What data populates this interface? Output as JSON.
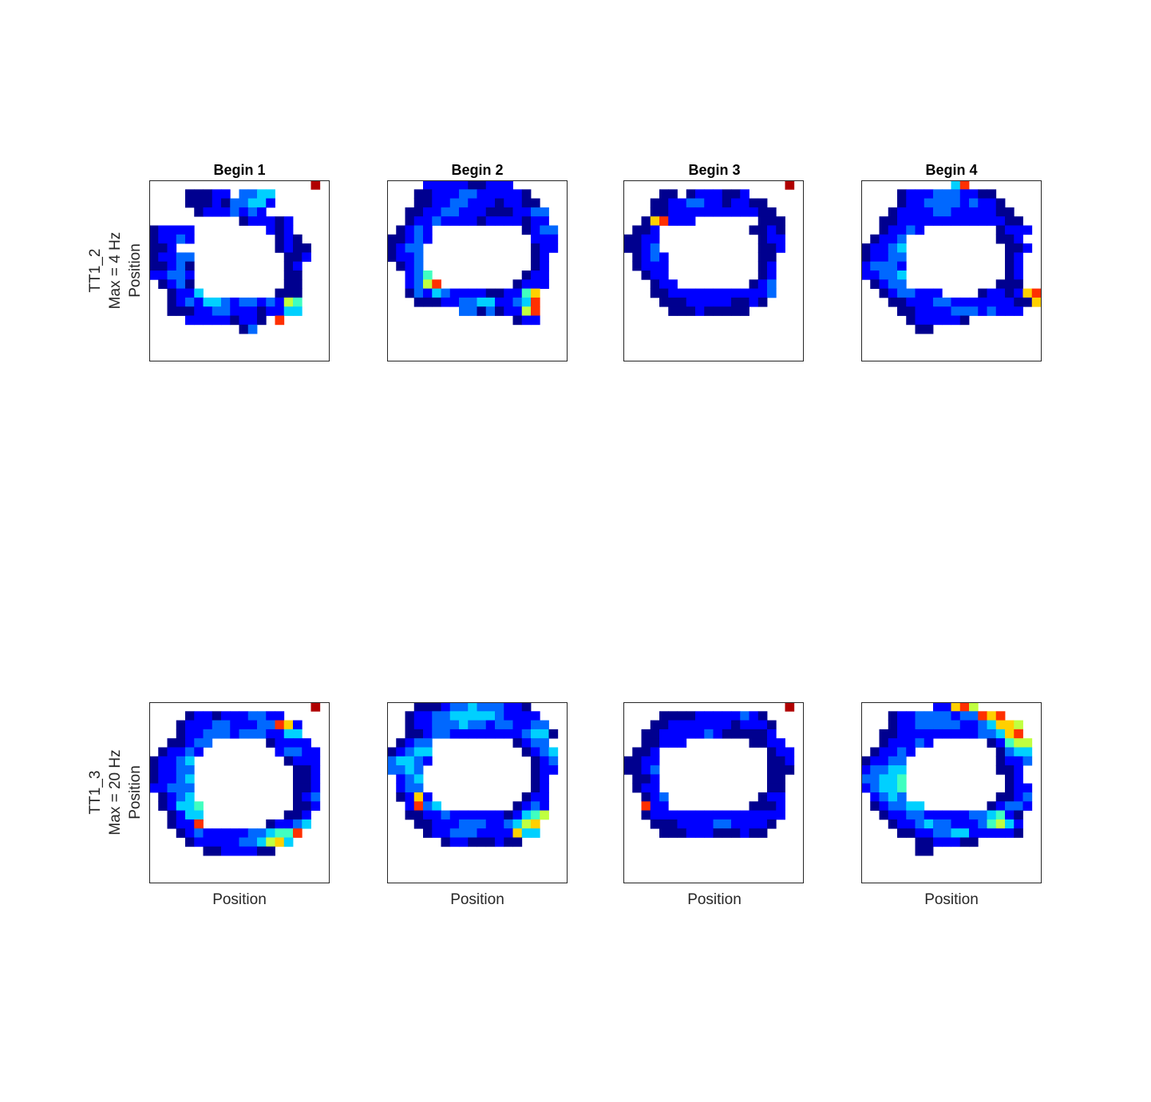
{
  "figure": {
    "column_titles": [
      "Begin 1",
      "Begin 2",
      "Begin 3",
      "Begin 4"
    ],
    "x_label": "Position",
    "rows": [
      {
        "cell": "TT1_2",
        "max_label": "Max = 4 Hz",
        "y_label": "Position"
      },
      {
        "cell": "TT1_3",
        "max_label": "Max = 20 Hz",
        "y_label": "Position"
      }
    ]
  },
  "chart_data": {
    "type": "heatmap",
    "grid": [
      20,
      20
    ],
    "colormap": "jet",
    "colormap_stops": [
      "#00008f",
      "#0000ff",
      "#00ffff",
      "#ffff00",
      "#ff0000",
      "#800000"
    ],
    "empty_color": "#ffffff",
    "axes_ticks": false,
    "panels": [
      {
        "row": 0,
        "col": 0,
        "title": "Begin 1",
        "rows": [
          "..................t.",
          "....aaabb.ccdd......",
          "....aaabaccddb......",
          ".....abbbcbcb.......",
          "..........abbbab....",
          "abbbb........bab....",
          "abbcb.........aba...",
          "aab...........abaa..",
          "abbcc..........aab..",
          "aabca..........ab...",
          "bbccb..........aa...",
          ".abca..........aa...",
          "..abbd........aaa...",
          "..abcbddcbccbcbfe...",
          "..aaabbccbbbabbdd...",
          "....bbbbbabba.h.....",
          "..........ac........",
          "...................."
        ]
      },
      {
        "row": 0,
        "col": 1,
        "title": "Begin 2",
        "rows": [
          "....bbbbbaabbb......",
          "...aabbbccbbbbba....",
          "...aabbccbbbabbaa...",
          "..aabbccbbbaaabbcc..",
          "..abbcbbbbabbbbabb..",
          ".abcb..........abcc.",
          "aabcb...........bbb.",
          "abcc............abb.",
          "abbc............ab..",
          ".abc............ab..",
          "..bce..........abb..",
          "..bcfh........abbb..",
          "..acbdcbbbbaabbeg...",
          "...aaabbccddbbcdh...",
          "........ccacabbfh...",
          "..............abb...",
          "...................."
        ]
      },
      {
        "row": 0,
        "col": 2,
        "title": "Begin 3",
        "rows": [
          "..................t.",
          "....aa.abbbaab......",
          "...aabbccbbabbaa....",
          "...aabbbbbbbbbbaa...",
          "..aghbbb.......aaa..",
          ".aab..........aaba..",
          "aabb...........abb..",
          "aabc...........aab..",
          ".abcb..........aa...",
          ".abbb..........ab...",
          "..abb..........ab...",
          "...abb........abc...",
          "...aabbbbbbbbbbbc...",
          "....aaabbbbbaaba....",
          ".....aaabaaaaa......",
          "...................."
        ]
      },
      {
        "row": 0,
        "col": 3,
        "title": "Begin 4",
        "rows": [
          "..........dh........",
          "....abbbcccbbaa.....",
          "....abbccccbcbba....",
          "...abbbbccbbbbbaa...",
          "..aabbbbbbbbbbbbaa..",
          "..abbcb........abbb.",
          ".abbc..........aab..",
          "abbcd...........aab.",
          "abbcc...........ab..",
          "bcccb...........ab..",
          "bbccd...........ab..",
          ".abcc..........aaa..",
          "..abccbbb....abbabgh",
          "...aabbbccbbbbbbbaag",
          "....aabbbbcccbcbbb..",
          ".....abbbbba........",
          "......aa............",
          "...................."
        ]
      },
      {
        "row": 1,
        "col": 0,
        "title": "",
        "rows": [
          "..................t.",
          "....abbabbbccbb.....",
          "...abbbccbbbcchgb...",
          "...abbcccbcccbbdd...",
          "..aabcc......abbbb..",
          ".abbcb........bccbb.",
          "abbcd..........abbb.",
          "abbcc...........aab.",
          "abbcd...........aab.",
          "bbccc...........aab.",
          ".abcd...........abc.",
          ".abdde..........aab.",
          "..abdd.........aab..",
          "..abbh.......abbcd..",
          "...abcbbbbbccdeeh...",
          "....abbbbbccdfgd....",
          "......aabbbbaa......",
          "...................."
        ]
      },
      {
        "row": 1,
        "col": 1,
        "title": "",
        "rows": [
          "...aaabccdcccbba....",
          "..abbccdddddcbbbb...",
          "..abbcccdccbccbbcc..",
          "..aabccbbbbbbbbcdda.",
          ".abcc.........abcc..",
          "abcdd..........abcd.",
          "cddcb...........abc.",
          "ccdc............abb.",
          ".bcd............ab..",
          ".bcc............ab..",
          ".abgb..........abb..",
          "..bhcd........abcb..",
          "..aabbcbbbbbbabdef..",
          "...aabbbcccbbcdfg...",
          "....abbcccbbbbgdd...",
          "......abbaaabaa.....",
          "...................."
        ]
      },
      {
        "row": 1,
        "col": 2,
        "title": "",
        "rows": [
          "..................t.",
          "....aaaabbbbbcba....",
          "...aabbbbbbbabbba...",
          "..aabbbbbcbaaaaab...",
          "..aabbb.......aabb..",
          ".aab............abb.",
          "aabb............aab.",
          "aabc............aaa.",
          ".aab............aa..",
          ".abb............aa..",
          "..abc..........abb..",
          "..hbb.........aaab..",
          "..abbbbbbbbbbbbbbb..",
          "...aaabbbbccbbbba...",
          "....aaabbbaaabaa....",
          "...................."
        ]
      },
      {
        "row": 1,
        "col": 3,
        "title": "",
        "rows": [
          "........bbghf.......",
          "...abbccccbcchgh....",
          "...abbcccccbbcdggf..",
          "..aabbbbbbbbbccdgh..",
          "..abbbcb......abeff.",
          ".abbcb.........acdd.",
          "abbcc..........abbc.",
          "bccdd..........aab..",
          "ccdde...........ab..",
          "bcdde...........abb.",
          ".bcdc..........aabc.",
          ".abccdd.......abccb.",
          "..abbccbbbbbccdeba..",
          "...abbcdccbbbcefdb..",
          "....aabbccddbbbbba..",
          "......aabbbaa.......",
          "......aa............",
          "...................."
        ]
      }
    ]
  }
}
